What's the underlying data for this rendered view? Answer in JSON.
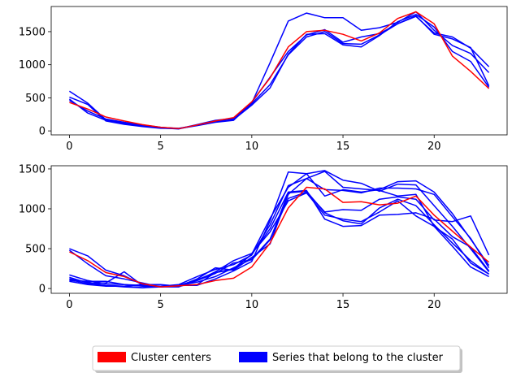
{
  "chart_data": [
    {
      "type": "line",
      "x": [
        0,
        1,
        2,
        3,
        4,
        5,
        6,
        7,
        8,
        9,
        10,
        11,
        12,
        13,
        14,
        15,
        16,
        17,
        18,
        19,
        20,
        21,
        22,
        23
      ],
      "xlim": [
        -1,
        24
      ],
      "ylim": [
        -60,
        1880
      ],
      "xticks": [
        0,
        5,
        10,
        15,
        20
      ],
      "yticks": [
        0,
        500,
        1000,
        1500
      ],
      "series": [
        {
          "color": "#ff0000",
          "role": "center",
          "values": [
            430,
            330,
            210,
            150,
            95,
            55,
            35,
            90,
            150,
            200,
            440,
            800,
            1270,
            1500,
            1520,
            1460,
            1360,
            1480,
            1700,
            1800,
            1620,
            1130,
            900,
            640
          ]
        },
        {
          "color": "#0000ff",
          "role": "member",
          "values": [
            600,
            420,
            170,
            120,
            85,
            50,
            40,
            85,
            140,
            175,
            410,
            700,
            1150,
            1420,
            1500,
            1320,
            1310,
            1450,
            1620,
            1730,
            1480,
            1420,
            1250,
            970
          ]
        },
        {
          "color": "#0000ff",
          "role": "member",
          "values": [
            480,
            270,
            160,
            110,
            70,
            45,
            30,
            90,
            140,
            170,
            390,
            650,
            1160,
            1460,
            1470,
            1300,
            1270,
            1440,
            1650,
            1760,
            1570,
            1200,
            1050,
            660
          ]
        },
        {
          "color": "#0000ff",
          "role": "member",
          "values": [
            510,
            400,
            150,
            100,
            65,
            40,
            35,
            80,
            130,
            160,
            420,
            1030,
            1660,
            1780,
            1710,
            1710,
            1520,
            1560,
            1640,
            1800,
            1520,
            1290,
            1170,
            880
          ]
        },
        {
          "color": "#0000ff",
          "role": "member",
          "values": [
            460,
            300,
            180,
            130,
            90,
            55,
            35,
            95,
            160,
            190,
            430,
            810,
            1200,
            1450,
            1530,
            1340,
            1420,
            1470,
            1620,
            1740,
            1460,
            1390,
            1260,
            680
          ]
        }
      ]
    },
    {
      "type": "line",
      "x": [
        0,
        1,
        2,
        3,
        4,
        5,
        6,
        7,
        8,
        9,
        10,
        11,
        12,
        13,
        14,
        15,
        16,
        17,
        18,
        19,
        20,
        21,
        22,
        23
      ],
      "xlim": [
        -1,
        24
      ],
      "ylim": [
        -60,
        1540
      ],
      "xticks": [
        0,
        5,
        10,
        15,
        20
      ],
      "yticks": [
        0,
        500,
        1000,
        1500
      ],
      "series": [
        {
          "color": "#ff0000",
          "role": "center",
          "values": [
            460,
            350,
            200,
            150,
            60,
            20,
            35,
            50,
            100,
            130,
            270,
            570,
            1010,
            1270,
            1250,
            1080,
            1090,
            1050,
            1070,
            1160,
            920,
            720,
            520,
            330
          ]
        },
        {
          "color": "#0000ff",
          "role": "member",
          "values": [
            500,
            410,
            230,
            160,
            50,
            20,
            40,
            40,
            120,
            220,
            340,
            850,
            1460,
            1440,
            1160,
            1240,
            1210,
            1240,
            1340,
            1350,
            1210,
            940,
            620,
            290
          ]
        },
        {
          "color": "#0000ff",
          "role": "member",
          "values": [
            480,
            310,
            160,
            120,
            70,
            20,
            40,
            50,
            200,
            240,
            430,
            750,
            1210,
            1230,
            870,
            780,
            790,
            920,
            930,
            950,
            870,
            650,
            520,
            220
          ]
        },
        {
          "color": "#0000ff",
          "role": "member",
          "values": [
            170,
            100,
            60,
            50,
            40,
            30,
            40,
            80,
            150,
            260,
            370,
            620,
            1130,
            1210,
            960,
            990,
            980,
            1120,
            1150,
            1120,
            860,
            840,
            910,
            420
          ]
        },
        {
          "color": "#0000ff",
          "role": "member",
          "values": [
            120,
            80,
            40,
            30,
            50,
            50,
            30,
            120,
            260,
            230,
            390,
            560,
            1180,
            1380,
            1240,
            1230,
            1200,
            1260,
            1260,
            1250,
            1180,
            900,
            630,
            260
          ]
        },
        {
          "color": "#0000ff",
          "role": "member",
          "values": [
            110,
            60,
            40,
            20,
            10,
            30,
            50,
            150,
            240,
            300,
            420,
            800,
            1290,
            1380,
            1470,
            1270,
            1250,
            1230,
            1160,
            1180,
            780,
            620,
            320,
            180
          ]
        },
        {
          "color": "#0000ff",
          "role": "member",
          "values": [
            100,
            90,
            90,
            50,
            30,
            20,
            40,
            110,
            200,
            250,
            430,
            880,
            1270,
            1440,
            1480,
            1360,
            1320,
            1220,
            1310,
            1300,
            1040,
            780,
            500,
            210
          ]
        },
        {
          "color": "#0000ff",
          "role": "member",
          "values": [
            90,
            50,
            30,
            30,
            10,
            20,
            20,
            100,
            210,
            350,
            440,
            710,
            1100,
            1200,
            920,
            870,
            840,
            960,
            1100,
            910,
            780,
            530,
            270,
            150
          ]
        },
        {
          "color": "#0000ff",
          "role": "member",
          "values": [
            140,
            70,
            70,
            210,
            40,
            30,
            30,
            100,
            190,
            320,
            360,
            610,
            1200,
            1220,
            950,
            850,
            810,
            1010,
            1120,
            1040,
            800,
            570,
            350,
            180
          ]
        }
      ]
    }
  ],
  "legend": {
    "items": [
      {
        "label": "Cluster centers",
        "color": "#ff0000"
      },
      {
        "label": "Series that belong to the cluster",
        "color": "#0000ff"
      }
    ]
  }
}
